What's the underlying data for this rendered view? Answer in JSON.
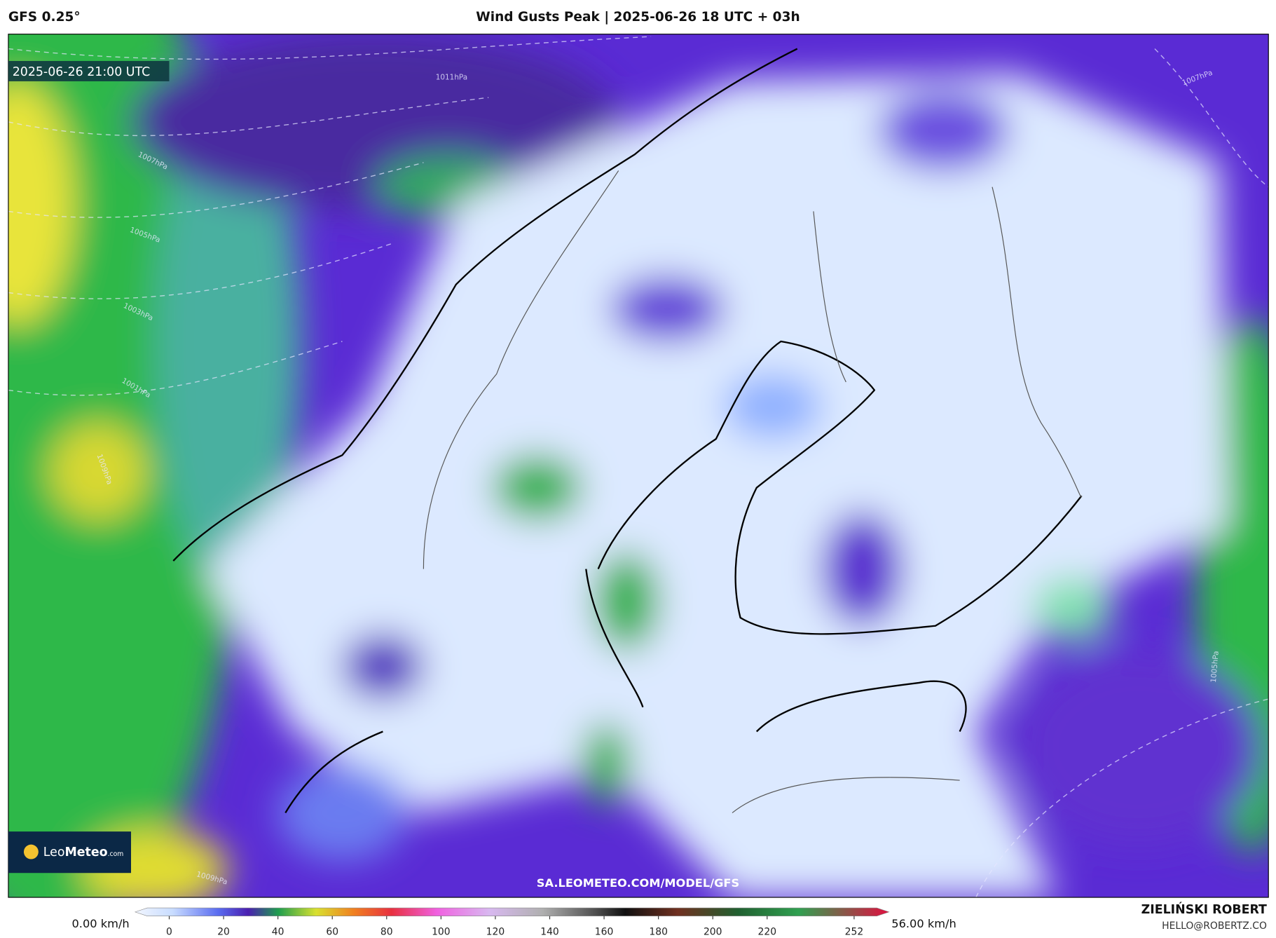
{
  "header": {
    "model": "GFS 0.25°",
    "title": "Wind Gusts Peak | 2025-06-26 18 UTC + 03h"
  },
  "map": {
    "valid_time": "2025-06-26 21:00 UTC",
    "url": "SA.LEOMETEO.COM/MODEL/GFS",
    "logo": {
      "light": "Leo",
      "bold": "Meteo",
      "suffix": ".com"
    },
    "isobars": [
      "1011hPa",
      "1007hPa",
      "1005hPa",
      "1003hPa",
      "1001hPa",
      "1009hPa",
      "1007hPa",
      "1005hPa",
      "1009hPa"
    ]
  },
  "colorbar": {
    "min_label": "0.00 km/h",
    "max_label": "56.00 km/h",
    "ticks": [
      0,
      20,
      40,
      60,
      80,
      100,
      120,
      140,
      160,
      180,
      200,
      220,
      252
    ]
  },
  "footer": {
    "author": "ZIELIŃSKI ROBERT",
    "email": "HELLO@ROBERTZ.CO"
  }
}
